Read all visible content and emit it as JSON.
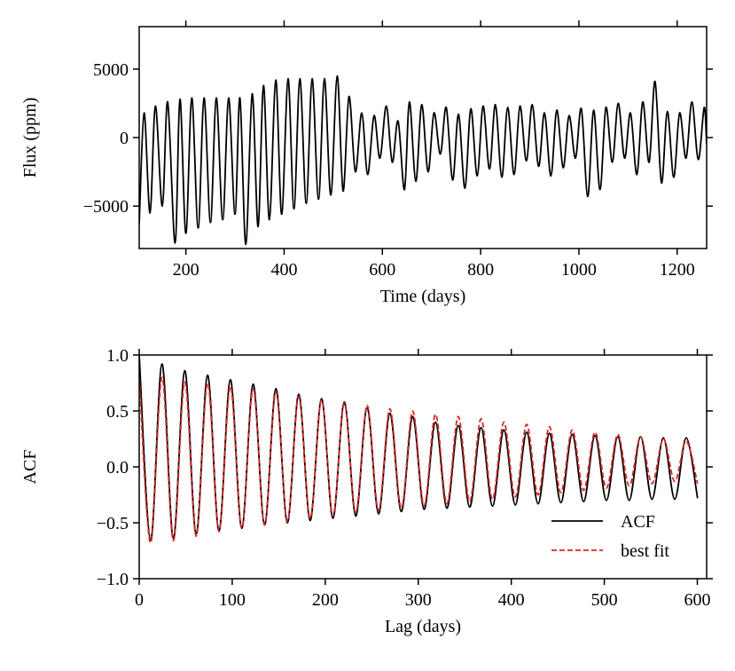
{
  "chart_data": [
    {
      "type": "line",
      "xlabel": "Time (days)",
      "ylabel": "Flux (ppm)",
      "xlim": [
        105,
        1260
      ],
      "ylim": [
        -8100,
        8100
      ],
      "xticks": [
        200,
        400,
        600,
        800,
        1000,
        1200
      ],
      "yticks": [
        {
          "value": -5000,
          "label": "−5000"
        },
        0,
        5000
      ],
      "x": [
        105,
        115,
        127,
        138,
        152,
        163,
        178,
        188,
        200,
        212,
        225,
        237,
        250,
        262,
        275,
        287,
        300,
        310,
        322,
        335,
        347,
        358,
        370,
        383,
        395,
        408,
        420,
        432,
        445,
        457,
        470,
        482,
        495,
        508,
        520,
        532,
        545,
        558,
        570,
        583,
        595,
        608,
        620,
        632,
        645,
        655,
        668,
        680,
        693,
        705,
        718,
        730,
        743,
        755,
        768,
        780,
        793,
        805,
        818,
        830,
        843,
        855,
        868,
        880,
        893,
        905,
        918,
        930,
        943,
        955,
        968,
        980,
        993,
        1005,
        1018,
        1030,
        1043,
        1055,
        1068,
        1080,
        1093,
        1105,
        1118,
        1130,
        1143,
        1155,
        1168,
        1180,
        1193,
        1205,
        1218,
        1230,
        1243,
        1255,
        1260
      ],
      "series": [
        {
          "color": "#000000",
          "linestyle": "solid",
          "values": [
            -6300,
            1800,
            -5500,
            2300,
            -5000,
            2600,
            -7700,
            2800,
            -7000,
            2900,
            -6600,
            2900,
            -6200,
            2900,
            -6000,
            2900,
            -5600,
            2900,
            -7800,
            3200,
            -6500,
            3800,
            -6000,
            4200,
            -5600,
            4300,
            -5200,
            4300,
            -4800,
            4300,
            -4500,
            4300,
            -4200,
            4500,
            -3900,
            3000,
            -2500,
            1800,
            -2700,
            1600,
            -1500,
            2300,
            -1800,
            1200,
            -3800,
            2600,
            -3200,
            2400,
            -2500,
            1800,
            -1200,
            2200,
            -3100,
            1700,
            -3700,
            2100,
            -2800,
            2300,
            -2300,
            2400,
            -2900,
            2200,
            -2700,
            2300,
            -1700,
            2400,
            -2100,
            1800,
            -2800,
            2000,
            -2200,
            1600,
            -1500,
            2100,
            -4300,
            2000,
            -3800,
            2200,
            -1800,
            2500,
            -1500,
            1800,
            -2700,
            2600,
            -1800,
            4100,
            -3300,
            1900,
            -2900,
            1800,
            -1500,
            2600,
            -1600,
            2200,
            -500
          ]
        }
      ]
    },
    {
      "type": "line",
      "xlabel": "Lag (days)",
      "ylabel": "ACF",
      "xlim": [
        0,
        610
      ],
      "ylim": [
        -1,
        1
      ],
      "xticks": [
        0,
        100,
        200,
        300,
        400,
        500,
        600
      ],
      "yticks": [
        {
          "value": -1,
          "label": "−1.0"
        },
        {
          "value": -0.5,
          "label": "−0.5"
        },
        {
          "value": 0,
          "label": "0.0"
        },
        0.5,
        {
          "value": 1,
          "label": "1.0"
        }
      ],
      "legend": "lower right",
      "x": [
        0,
        12.25,
        24.5,
        36.75,
        49,
        61.25,
        73.5,
        85.75,
        98,
        110.25,
        122.5,
        134.75,
        147,
        159.25,
        171.5,
        183.75,
        196,
        208.25,
        220.5,
        232.75,
        245,
        257.25,
        269.5,
        281.75,
        294,
        306.25,
        318.5,
        330.75,
        343,
        355.25,
        367.5,
        379.75,
        392,
        404.25,
        416.5,
        428.75,
        441,
        453.25,
        465.5,
        477.75,
        490,
        502.25,
        514.5,
        526.75,
        539,
        551.25,
        563.5,
        575.75,
        588,
        600.25
      ],
      "series": [
        {
          "name": "ACF",
          "color": "#000000",
          "linestyle": "solid",
          "values": [
            1.0,
            -0.66,
            0.92,
            -0.64,
            0.86,
            -0.6,
            0.82,
            -0.57,
            0.78,
            -0.55,
            0.74,
            -0.52,
            0.7,
            -0.5,
            0.65,
            -0.48,
            0.61,
            -0.46,
            0.58,
            -0.44,
            0.53,
            -0.42,
            0.48,
            -0.4,
            0.45,
            -0.38,
            0.4,
            -0.37,
            0.37,
            -0.36,
            0.35,
            -0.35,
            0.33,
            -0.34,
            0.31,
            -0.33,
            0.3,
            -0.32,
            0.29,
            -0.31,
            0.28,
            -0.3,
            0.27,
            -0.3,
            0.27,
            -0.29,
            0.26,
            -0.29,
            0.26,
            -0.28
          ]
        },
        {
          "name": "best fit",
          "color": "#d62728",
          "linestyle": "dashed",
          "values": [
            0.8,
            -0.68,
            0.8,
            -0.66,
            0.76,
            -0.62,
            0.75,
            -0.58,
            0.72,
            -0.55,
            0.7,
            -0.52,
            0.67,
            -0.49,
            0.63,
            -0.46,
            0.6,
            -0.44,
            0.57,
            -0.41,
            0.55,
            -0.39,
            0.52,
            -0.37,
            0.5,
            -0.35,
            0.47,
            -0.33,
            0.45,
            -0.31,
            0.43,
            -0.29,
            0.4,
            -0.27,
            0.38,
            -0.25,
            0.36,
            -0.23,
            0.33,
            -0.21,
            0.31,
            -0.19,
            0.29,
            -0.17,
            0.27,
            -0.15,
            0.25,
            -0.13,
            0.23,
            -0.15
          ]
        }
      ]
    }
  ]
}
